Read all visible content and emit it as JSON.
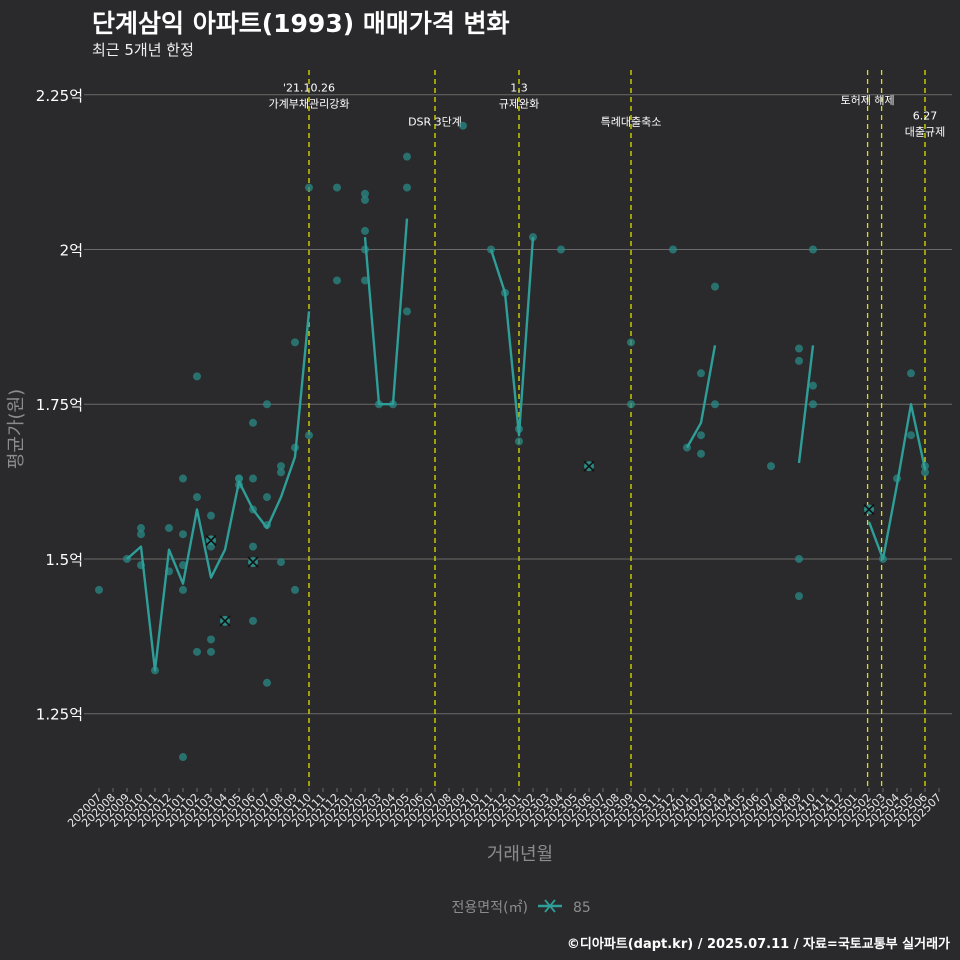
{
  "header": {
    "title": "단계삼익 아파트(1993) 매매가격 변화",
    "subtitle": "최근 5개년 한정"
  },
  "caption": "©디아파트(dapt.kr) / 2025.07.11 / 자료=국토교통부 실거래가",
  "chart_data": {
    "type": "line",
    "title": "단계삼익 아파트(1993) 매매가격 변화",
    "subtitle": "최근 5개년 한정",
    "xlabel": "거래년월",
    "ylabel": "평균가(원)",
    "ylim": [
      1.13,
      2.29
    ],
    "yticks": [
      {
        "value": 1.25,
        "label": "1.25억"
      },
      {
        "value": 1.5,
        "label": "1.5억"
      },
      {
        "value": 1.75,
        "label": "1.75억"
      },
      {
        "value": 2.0,
        "label": "2억"
      },
      {
        "value": 2.25,
        "label": "2.25억"
      }
    ],
    "categories": [
      "202007",
      "202008",
      "202009",
      "202010",
      "202011",
      "202012",
      "202101",
      "202102",
      "202103",
      "202104",
      "202105",
      "202106",
      "202107",
      "202108",
      "202109",
      "202110",
      "202111",
      "202112",
      "202201",
      "202202",
      "202203",
      "202204",
      "202205",
      "202206",
      "202207",
      "202208",
      "202209",
      "202210",
      "202211",
      "202212",
      "202301",
      "202302",
      "202303",
      "202304",
      "202305",
      "202306",
      "202307",
      "202308",
      "202309",
      "202310",
      "202311",
      "202312",
      "202401",
      "202402",
      "202403",
      "202404",
      "202405",
      "202406",
      "202407",
      "202408",
      "202409",
      "202410",
      "202411",
      "202412",
      "202501",
      "202502",
      "202503",
      "202504",
      "202505",
      "202506",
      "202507"
    ],
    "legend": {
      "title": "전용면적(㎡)",
      "items": [
        "85"
      ],
      "position": "bottom"
    },
    "colors": {
      "background": "#2a292b",
      "line": "#2e9e98",
      "point": "#2a8a85",
      "grid": "#6a6a6a",
      "event_line": "#e0e000",
      "text": "#ffffff",
      "axis_text": "#8c8c8c"
    },
    "series": [
      {
        "name": "85",
        "line_segments": [
          [
            [
              2,
              1.5
            ],
            [
              3,
              1.52
            ],
            [
              4,
              1.32
            ],
            [
              5,
              1.515
            ],
            [
              6,
              1.46
            ],
            [
              7,
              1.58
            ],
            [
              8,
              1.47
            ],
            [
              9,
              1.515
            ],
            [
              10,
              1.625
            ],
            [
              11,
              1.58
            ],
            [
              12,
              1.55
            ],
            [
              13,
              1.6
            ],
            [
              14,
              1.665
            ],
            [
              15,
              1.9
            ]
          ],
          [
            [
              19,
              2.02
            ],
            [
              20,
              1.75
            ],
            [
              21,
              1.75
            ],
            [
              22,
              2.05
            ]
          ],
          [
            [
              28,
              2.0
            ],
            [
              29,
              1.93
            ],
            [
              30,
              1.7
            ],
            [
              31,
              2.02
            ]
          ],
          [
            [
              42,
              1.68
            ],
            [
              43,
              1.72
            ],
            [
              44,
              1.845
            ]
          ],
          [
            [
              50,
              1.655
            ],
            [
              51,
              1.845
            ]
          ],
          [
            [
              55,
              1.56
            ],
            [
              56,
              1.5
            ],
            [
              57,
              1.62
            ],
            [
              58,
              1.75
            ],
            [
              59,
              1.645
            ]
          ]
        ],
        "points": [
          [
            0,
            1.45
          ],
          [
            2,
            1.5
          ],
          [
            3,
            1.55
          ],
          [
            3,
            1.54
          ],
          [
            3,
            1.49
          ],
          [
            4,
            1.32
          ],
          [
            5,
            1.55
          ],
          [
            5,
            1.48
          ],
          [
            6,
            1.54
          ],
          [
            6,
            1.49
          ],
          [
            6,
            1.45
          ],
          [
            6,
            1.18
          ],
          [
            6,
            1.63
          ],
          [
            7,
            1.795
          ],
          [
            7,
            1.6
          ],
          [
            7,
            1.35
          ],
          [
            8,
            1.57
          ],
          [
            8,
            1.52
          ],
          [
            8,
            1.37
          ],
          [
            8,
            1.35
          ],
          [
            10,
            1.63
          ],
          [
            10,
            1.63
          ],
          [
            10,
            1.62
          ],
          [
            11,
            1.72
          ],
          [
            11,
            1.63
          ],
          [
            11,
            1.58
          ],
          [
            11,
            1.52
          ],
          [
            11,
            1.4
          ],
          [
            12,
            1.75
          ],
          [
            12,
            1.6
          ],
          [
            12,
            1.555
          ],
          [
            12,
            1.3
          ],
          [
            13,
            1.65
          ],
          [
            13,
            1.64
          ],
          [
            13,
            1.495
          ],
          [
            14,
            1.85
          ],
          [
            14,
            1.68
          ],
          [
            14,
            1.45
          ],
          [
            15,
            2.1
          ],
          [
            15,
            1.7
          ],
          [
            17,
            2.1
          ],
          [
            17,
            1.95
          ],
          [
            19,
            2.09
          ],
          [
            19,
            2.08
          ],
          [
            19,
            2.03
          ],
          [
            19,
            2.0
          ],
          [
            19,
            1.95
          ],
          [
            20,
            1.75
          ],
          [
            21,
            1.75
          ],
          [
            22,
            2.15
          ],
          [
            22,
            2.1
          ],
          [
            22,
            1.9
          ],
          [
            26,
            2.2
          ],
          [
            28,
            2.0
          ],
          [
            29,
            1.93
          ],
          [
            30,
            1.71
          ],
          [
            30,
            1.69
          ],
          [
            31,
            2.02
          ],
          [
            33,
            2.0
          ],
          [
            38,
            1.85
          ],
          [
            38,
            1.75
          ],
          [
            41,
            2.0
          ],
          [
            42,
            1.68
          ],
          [
            43,
            1.8
          ],
          [
            43,
            1.7
          ],
          [
            43,
            1.67
          ],
          [
            44,
            1.94
          ],
          [
            44,
            1.75
          ],
          [
            48,
            1.65
          ],
          [
            50,
            1.84
          ],
          [
            50,
            1.82
          ],
          [
            50,
            1.5
          ],
          [
            50,
            1.44
          ],
          [
            51,
            2.0
          ],
          [
            51,
            1.78
          ],
          [
            51,
            1.75
          ],
          [
            56,
            1.5
          ],
          [
            57,
            1.63
          ],
          [
            58,
            1.8
          ],
          [
            58,
            1.7
          ],
          [
            59,
            1.65
          ],
          [
            59,
            1.64
          ]
        ],
        "x_markers": [
          [
            8,
            1.53
          ],
          [
            9,
            1.4
          ],
          [
            11,
            1.495
          ],
          [
            35,
            1.65
          ],
          [
            55,
            1.58
          ]
        ]
      }
    ],
    "events": [
      {
        "x": 15.0,
        "lines": [
          "'21.10.26",
          "가계부채관리강화"
        ],
        "label_y": 2.255
      },
      {
        "x": 24.0,
        "lines": [
          "DSR 3단계"
        ],
        "label_y": 2.2
      },
      {
        "x": 30.0,
        "lines": [
          "1.3",
          "규제완화"
        ],
        "label_y": 2.255
      },
      {
        "x": 38.0,
        "lines": [
          "특례대출축소"
        ],
        "label_y": 2.2
      },
      {
        "x": 54.9,
        "lines": [
          "토허제 해제"
        ],
        "label_y": 2.235
      },
      {
        "x": 55.9,
        "lines": [],
        "label_y": 2.235
      },
      {
        "x": 59.0,
        "lines": [
          "6.27",
          "대출규제"
        ],
        "label_y": 2.21
      }
    ]
  }
}
